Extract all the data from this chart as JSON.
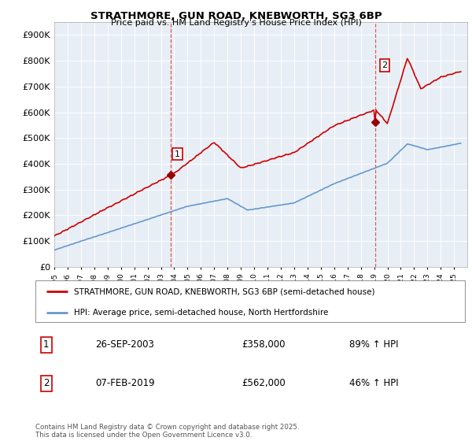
{
  "title": "STRATHMORE, GUN ROAD, KNEBWORTH, SG3 6BP",
  "subtitle": "Price paid vs. HM Land Registry's House Price Index (HPI)",
  "legend_line1": "STRATHMORE, GUN ROAD, KNEBWORTH, SG3 6BP (semi-detached house)",
  "legend_line2": "HPI: Average price, semi-detached house, North Hertfordshire",
  "annotation1_label": "1",
  "annotation1_date": "26-SEP-2003",
  "annotation1_price": "£358,000",
  "annotation1_hpi": "89% ↑ HPI",
  "annotation2_label": "2",
  "annotation2_date": "07-FEB-2019",
  "annotation2_price": "£562,000",
  "annotation2_hpi": "46% ↑ HPI",
  "footer": "Contains HM Land Registry data © Crown copyright and database right 2025.\nThis data is licensed under the Open Government Licence v3.0.",
  "red_color": "#cc0000",
  "blue_color": "#6699cc",
  "vline_color": "#dd5555",
  "bg_color": "#e8eef5",
  "ylim": [
    0,
    950000
  ],
  "yticks": [
    0,
    100000,
    200000,
    300000,
    400000,
    500000,
    600000,
    700000,
    800000,
    900000
  ],
  "ytick_labels": [
    "£0",
    "£100K",
    "£200K",
    "£300K",
    "£400K",
    "£500K",
    "£600K",
    "£700K",
    "£800K",
    "£900K"
  ],
  "xmin": 1995.0,
  "xmax": 2025.99,
  "marker1_x": 2003.73,
  "marker1_y": 358000,
  "marker2_x": 2019.1,
  "marker2_y": 562000,
  "vline1_x": 2003.73,
  "vline2_x": 2019.1
}
